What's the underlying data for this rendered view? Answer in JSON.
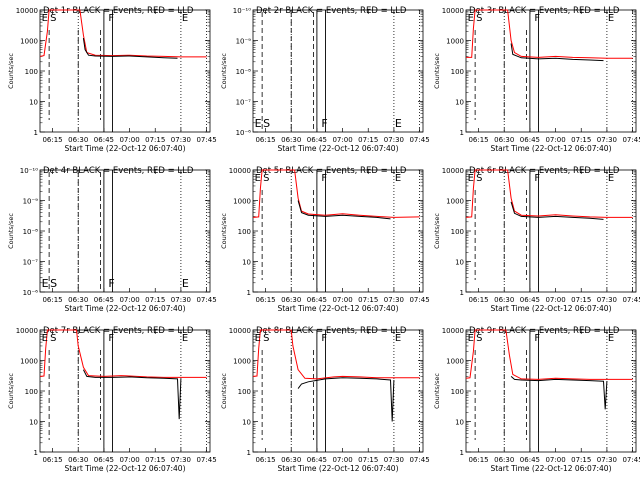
{
  "chart_data": [
    {
      "type": "line",
      "title": "Det 1r BLACK = Events, RED = LLD",
      "xlabel": "Start Time (22-Oct-12 06:07:40)",
      "ylabel": "Counts/sec",
      "yscale": "log",
      "ylim": [
        1,
        10000
      ],
      "xlim": [
        "06:07:40",
        "07:47:00"
      ],
      "x_ticks": [
        "06:15",
        "06:30",
        "06:45",
        "07:00",
        "07:15",
        "07:30",
        "07:45"
      ],
      "y_ticks": [
        "1",
        "10",
        "100",
        "1000",
        "10000"
      ],
      "markers": [
        "E",
        "S",
        "F",
        "E"
      ],
      "has_data": true,
      "series": [
        {
          "color": "#ff0000",
          "points": [
            [
              "06:07:40",
              300
            ],
            [
              "06:10",
              320
            ],
            [
              "06:12",
              2000
            ],
            [
              "06:13",
              10000
            ],
            [
              "06:31",
              10000
            ],
            [
              "06:33",
              1500
            ],
            [
              "06:35",
              400
            ],
            [
              "06:40",
              330
            ],
            [
              "06:50",
              320
            ],
            [
              "07:00",
              330
            ],
            [
              "07:10",
              310
            ],
            [
              "07:20",
              300
            ],
            [
              "07:30",
              290
            ],
            [
              "07:45",
              290
            ]
          ]
        },
        {
          "color": "#000000",
          "points": [
            [
              "06:33",
              1200
            ],
            [
              "06:34",
              500
            ],
            [
              "06:36",
              330
            ],
            [
              "06:40",
              310
            ],
            [
              "06:50",
              300
            ],
            [
              "07:00",
              310
            ],
            [
              "07:10",
              290
            ],
            [
              "07:20",
              270
            ],
            [
              "07:28",
              260
            ]
          ]
        }
      ]
    },
    {
      "type": "line",
      "title": "Det 2r BLACK = Events, RED = LLD",
      "xlabel": "Start Time (22-Oct-12 06:07:40)",
      "ylabel": "Counts/sec",
      "yscale": "log",
      "ylim": [
        1e-06,
        1e-10
      ],
      "xlim": [
        "06:07:40",
        "07:47:00"
      ],
      "x_ticks": [
        "06:15",
        "06:30",
        "06:45",
        "07:00",
        "07:15",
        "07:30",
        "07:45"
      ],
      "y_ticks": [
        "10⁻⁶",
        "10⁻⁷",
        "10⁻⁸",
        "10⁻⁹",
        "10⁻¹⁰"
      ],
      "markers": [
        "E",
        "S",
        "F",
        "E"
      ],
      "has_data": false,
      "series": []
    },
    {
      "type": "line",
      "title": "Det 3r BLACK = Events, RED = LLD",
      "xlabel": "Start Time (22-Oct-12 06:07:40)",
      "ylabel": "Counts/sec",
      "yscale": "log",
      "ylim": [
        1,
        10000
      ],
      "xlim": [
        "06:07:40",
        "07:47:00"
      ],
      "x_ticks": [
        "06:15",
        "06:30",
        "06:45",
        "07:00",
        "07:15",
        "07:30",
        "07:45"
      ],
      "y_ticks": [
        "1",
        "10",
        "100",
        "1000",
        "10000"
      ],
      "markers": [
        "E",
        "S",
        "F",
        "E"
      ],
      "has_data": true,
      "series": [
        {
          "color": "#ff0000",
          "points": [
            [
              "06:07:40",
              280
            ],
            [
              "06:11",
              280
            ],
            [
              "06:12",
              2500
            ],
            [
              "06:13",
              10000
            ],
            [
              "06:32",
              10000
            ],
            [
              "06:34",
              1000
            ],
            [
              "06:36",
              400
            ],
            [
              "06:40",
              300
            ],
            [
              "06:50",
              280
            ],
            [
              "07:00",
              300
            ],
            [
              "07:10",
              280
            ],
            [
              "07:20",
              270
            ],
            [
              "07:30",
              260
            ],
            [
              "07:45",
              260
            ]
          ]
        },
        {
          "color": "#000000",
          "points": [
            [
              "06:34",
              800
            ],
            [
              "06:35",
              350
            ],
            [
              "06:40",
              270
            ],
            [
              "06:50",
              250
            ],
            [
              "07:00",
              260
            ],
            [
              "07:10",
              240
            ],
            [
              "07:20",
              230
            ],
            [
              "07:28",
              220
            ]
          ]
        }
      ]
    },
    {
      "type": "line",
      "title": "Det 4r BLACK = Events, RED = LLD",
      "xlabel": "Start Time (22-Oct-12 06:07:40)",
      "ylabel": "Counts/sec",
      "yscale": "log",
      "ylim": [
        1e-06,
        1e-10
      ],
      "xlim": [
        "06:07:40",
        "07:47:00"
      ],
      "x_ticks": [
        "06:15",
        "06:30",
        "06:45",
        "07:00",
        "07:15",
        "07:30",
        "07:45"
      ],
      "y_ticks": [
        "10⁻⁶",
        "10⁻⁷",
        "10⁻⁸",
        "10⁻⁹",
        "10⁻¹⁰"
      ],
      "markers": [
        "E",
        "S",
        "F",
        "E"
      ],
      "has_data": false,
      "series": []
    },
    {
      "type": "line",
      "title": "Det 5r BLACK = Events, RED = LLD",
      "xlabel": "Start Time (22-Oct-12 06:07:40)",
      "ylabel": "Counts/sec",
      "yscale": "log",
      "ylim": [
        1,
        10000
      ],
      "xlim": [
        "06:07:40",
        "07:47:00"
      ],
      "x_ticks": [
        "06:15",
        "06:30",
        "06:45",
        "07:00",
        "07:15",
        "07:30",
        "07:45"
      ],
      "y_ticks": [
        "1",
        "10",
        "100",
        "1000",
        "10000"
      ],
      "markers": [
        "E",
        "S",
        "F",
        "E"
      ],
      "has_data": true,
      "series": [
        {
          "color": "#ff0000",
          "points": [
            [
              "06:07:40",
              280
            ],
            [
              "06:11",
              290
            ],
            [
              "06:12",
              2500
            ],
            [
              "06:13",
              10000
            ],
            [
              "06:32",
              10000
            ],
            [
              "06:34",
              1200
            ],
            [
              "06:36",
              450
            ],
            [
              "06:40",
              360
            ],
            [
              "06:50",
              330
            ],
            [
              "07:00",
              370
            ],
            [
              "07:10",
              330
            ],
            [
              "07:20",
              300
            ],
            [
              "07:30",
              280
            ],
            [
              "07:45",
              290
            ]
          ]
        },
        {
          "color": "#000000",
          "points": [
            [
              "06:34",
              1000
            ],
            [
              "06:36",
              400
            ],
            [
              "06:40",
              330
            ],
            [
              "06:50",
              300
            ],
            [
              "07:00",
              330
            ],
            [
              "07:10",
              300
            ],
            [
              "07:20",
              280
            ],
            [
              "07:28",
              250
            ]
          ]
        }
      ]
    },
    {
      "type": "line",
      "title": "Det 6r BLACK = Events, RED = LLD",
      "xlabel": "Start Time (22-Oct-12 06:07:40)",
      "ylabel": "Counts/sec",
      "yscale": "log",
      "ylim": [
        1,
        10000
      ],
      "xlim": [
        "06:07:40",
        "07:47:00"
      ],
      "x_ticks": [
        "06:15",
        "06:30",
        "06:45",
        "07:00",
        "07:15",
        "07:30",
        "07:45"
      ],
      "y_ticks": [
        "1",
        "10",
        "100",
        "1000",
        "10000"
      ],
      "markers": [
        "E",
        "S",
        "F",
        "E"
      ],
      "has_data": true,
      "series": [
        {
          "color": "#ff0000",
          "points": [
            [
              "06:07:40",
              280
            ],
            [
              "06:11",
              290
            ],
            [
              "06:12",
              2500
            ],
            [
              "06:13",
              10000
            ],
            [
              "06:32",
              10000
            ],
            [
              "06:34",
              1200
            ],
            [
              "06:36",
              450
            ],
            [
              "06:40",
              330
            ],
            [
              "06:50",
              310
            ],
            [
              "07:00",
              340
            ],
            [
              "07:10",
              310
            ],
            [
              "07:20",
              290
            ],
            [
              "07:30",
              280
            ],
            [
              "07:45",
              280
            ]
          ]
        },
        {
          "color": "#000000",
          "points": [
            [
              "06:34",
              900
            ],
            [
              "06:36",
              380
            ],
            [
              "06:40",
              300
            ],
            [
              "06:50",
              280
            ],
            [
              "07:00",
              300
            ],
            [
              "07:10",
              280
            ],
            [
              "07:20",
              260
            ],
            [
              "07:28",
              240
            ]
          ]
        }
      ]
    },
    {
      "type": "line",
      "title": "Det 7r BLACK = Events, RED = LLD",
      "xlabel": "Start Time (22-Oct-12 06:07:40)",
      "ylabel": "Counts/sec",
      "yscale": "log",
      "ylim": [
        1,
        10000
      ],
      "xlim": [
        "06:07:40",
        "07:47:00"
      ],
      "x_ticks": [
        "06:15",
        "06:30",
        "06:45",
        "07:00",
        "07:15",
        "07:30",
        "07:45"
      ],
      "y_ticks": [
        "1",
        "10",
        "100",
        "1000",
        "10000"
      ],
      "markers": [
        "E",
        "S",
        "F",
        "E"
      ],
      "has_data": true,
      "series": [
        {
          "color": "#ff0000",
          "points": [
            [
              "06:07:40",
              300
            ],
            [
              "06:10",
              310
            ],
            [
              "06:11",
              2500
            ],
            [
              "06:12",
              10000
            ],
            [
              "06:29",
              10000
            ],
            [
              "06:30",
              3000
            ],
            [
              "06:33",
              600
            ],
            [
              "06:36",
              320
            ],
            [
              "06:45",
              300
            ],
            [
              "06:55",
              320
            ],
            [
              "07:00",
              310
            ],
            [
              "07:10",
              290
            ],
            [
              "07:20",
              280
            ],
            [
              "07:30",
              280
            ],
            [
              "07:45",
              280
            ]
          ]
        },
        {
          "color": "#000000",
          "points": [
            [
              "06:33",
              500
            ],
            [
              "06:35",
              300
            ],
            [
              "06:40",
              280
            ],
            [
              "06:50",
              280
            ],
            [
              "07:00",
              290
            ],
            [
              "07:10",
              270
            ],
            [
              "07:20",
              260
            ],
            [
              "07:28",
              250
            ],
            [
              "07:29",
              12
            ],
            [
              "07:30",
              250
            ]
          ]
        }
      ]
    },
    {
      "type": "line",
      "title": "Det 8r BLACK = Events, RED = LLD",
      "xlabel": "Start Time (22-Oct-12 06:07:40)",
      "ylabel": "Counts/sec",
      "yscale": "log",
      "ylim": [
        1,
        10000
      ],
      "xlim": [
        "06:07:40",
        "07:47:00"
      ],
      "x_ticks": [
        "06:15",
        "06:30",
        "06:45",
        "07:00",
        "07:15",
        "07:30",
        "07:45"
      ],
      "y_ticks": [
        "1",
        "10",
        "100",
        "1000",
        "10000"
      ],
      "markers": [
        "E",
        "S",
        "F",
        "E"
      ],
      "has_data": true,
      "series": [
        {
          "color": "#ff0000",
          "points": [
            [
              "06:07:40",
              300
            ],
            [
              "06:10",
              310
            ],
            [
              "06:11",
              2500
            ],
            [
              "06:12",
              10000
            ],
            [
              "06:30",
              10000
            ],
            [
              "06:31",
              3000
            ],
            [
              "06:34",
              500
            ],
            [
              "06:38",
              260
            ],
            [
              "06:45",
              250
            ],
            [
              "06:55",
              290
            ],
            [
              "07:00",
              300
            ],
            [
              "07:10",
              290
            ],
            [
              "07:20",
              270
            ],
            [
              "07:30",
              270
            ],
            [
              "07:45",
              270
            ]
          ]
        },
        {
          "color": "#000000",
          "points": [
            [
              "06:34",
              120
            ],
            [
              "06:36",
              170
            ],
            [
              "06:40",
              200
            ],
            [
              "06:50",
              250
            ],
            [
              "07:00",
              270
            ],
            [
              "07:10",
              260
            ],
            [
              "07:20",
              250
            ],
            [
              "07:28",
              230
            ],
            [
              "07:29",
              10
            ],
            [
              "07:30",
              230
            ]
          ]
        }
      ]
    },
    {
      "type": "line",
      "title": "Det 9r BLACK = Events, RED = LLD",
      "xlabel": "Start Time (22-Oct-12 06:07:40)",
      "ylabel": "Counts/sec",
      "yscale": "log",
      "ylim": [
        1,
        10000
      ],
      "xlim": [
        "06:07:40",
        "07:47:00"
      ],
      "x_ticks": [
        "06:15",
        "06:30",
        "06:45",
        "07:00",
        "07:15",
        "07:30",
        "07:45"
      ],
      "y_ticks": [
        "1",
        "10",
        "100",
        "1000",
        "10000"
      ],
      "markers": [
        "E",
        "S",
        "F",
        "E"
      ],
      "has_data": true,
      "series": [
        {
          "color": "#ff0000",
          "points": [
            [
              "06:07:40",
              260
            ],
            [
              "06:10",
              270
            ],
            [
              "06:12",
              2000
            ],
            [
              "06:13",
              10000
            ],
            [
              "06:31",
              10000
            ],
            [
              "06:33",
              1500
            ],
            [
              "06:35",
              350
            ],
            [
              "06:40",
              250
            ],
            [
              "06:50",
              240
            ],
            [
              "07:00",
              260
            ],
            [
              "07:10",
              250
            ],
            [
              "07:20",
              240
            ],
            [
              "07:30",
              240
            ],
            [
              "07:45",
              240
            ]
          ]
        },
        {
          "color": "#000000",
          "points": [
            [
              "06:34",
              300
            ],
            [
              "06:36",
              240
            ],
            [
              "06:40",
              230
            ],
            [
              "06:50",
              220
            ],
            [
              "07:00",
              240
            ],
            [
              "07:10",
              230
            ],
            [
              "07:20",
              220
            ],
            [
              "07:28",
              210
            ],
            [
              "07:29",
              25
            ],
            [
              "07:30",
              210
            ]
          ]
        }
      ]
    }
  ]
}
